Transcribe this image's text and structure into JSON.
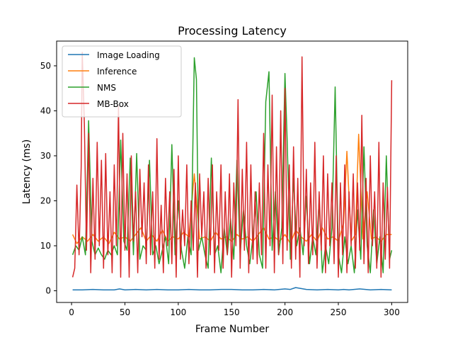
{
  "chart_data": {
    "type": "line",
    "title": "Processing Latency",
    "xlabel": "Frame Number",
    "ylabel": "Latency (ms)",
    "xlim": [
      -14,
      315
    ],
    "ylim": [
      -2.6,
      55.5
    ],
    "xticks": [
      0,
      50,
      100,
      150,
      200,
      250,
      300
    ],
    "yticks": [
      0,
      10,
      20,
      30,
      40,
      50
    ],
    "grid": false,
    "legend_position": "top-left",
    "series": [
      {
        "name": "Image Loading",
        "color": "#1f77b4",
        "x": [
          1,
          10,
          20,
          30,
          40,
          45,
          50,
          60,
          70,
          80,
          90,
          100,
          110,
          120,
          130,
          140,
          150,
          160,
          170,
          180,
          190,
          200,
          205,
          210,
          220,
          230,
          240,
          250,
          255,
          260,
          270,
          280,
          290,
          300
        ],
        "y": [
          0.2,
          0.2,
          0.3,
          0.2,
          0.2,
          0.4,
          0.2,
          0.3,
          0.2,
          0.3,
          0.2,
          0.2,
          0.3,
          0.2,
          0.2,
          0.3,
          0.3,
          0.2,
          0.2,
          0.3,
          0.2,
          0.4,
          0.3,
          0.7,
          0.3,
          0.2,
          0.3,
          0.2,
          0.3,
          0.2,
          0.4,
          0.2,
          0.3,
          0.2
        ]
      },
      {
        "name": "Inference",
        "color": "#ff7f0e",
        "x": [
          1,
          5,
          10,
          15,
          20,
          25,
          30,
          35,
          40,
          45,
          50,
          55,
          60,
          65,
          70,
          75,
          80,
          85,
          90,
          95,
          100,
          105,
          110,
          115,
          120,
          125,
          130,
          135,
          140,
          145,
          150,
          155,
          160,
          165,
          170,
          175,
          180,
          185,
          190,
          195,
          200,
          205,
          210,
          215,
          220,
          225,
          230,
          235,
          240,
          245,
          250,
          255,
          258,
          262,
          266,
          269,
          273,
          277,
          281,
          285,
          290,
          295,
          300
        ],
        "y": [
          12.5,
          10.5,
          12.0,
          11.0,
          12.5,
          11.0,
          12.0,
          10.5,
          13.0,
          11.5,
          12.0,
          11.0,
          12.5,
          14.0,
          11.0,
          12.5,
          11.0,
          13.5,
          11.0,
          12.0,
          11.5,
          13.0,
          12.0,
          26.0,
          11.5,
          12.0,
          11.0,
          13.0,
          11.5,
          12.0,
          11.0,
          12.5,
          11.5,
          12.0,
          11.0,
          12.5,
          14.0,
          11.5,
          12.0,
          11.0,
          12.5,
          10.5,
          13.5,
          12.0,
          11.0,
          12.5,
          11.0,
          14.0,
          11.5,
          12.0,
          11.0,
          15.0,
          31.0,
          11.0,
          12.5,
          34.8,
          11.5,
          22.0,
          11.5,
          12.0,
          11.0,
          12.5,
          12.5
        ]
      },
      {
        "name": "NMS",
        "color": "#2ca02c",
        "x": [
          1,
          4,
          7,
          10,
          13,
          16,
          19,
          22,
          25,
          28,
          31,
          34,
          37,
          40,
          43,
          46,
          49,
          52,
          55,
          58,
          61,
          64,
          67,
          70,
          73,
          76,
          79,
          82,
          85,
          88,
          91,
          94,
          97,
          100,
          103,
          106,
          109,
          112,
          115,
          117,
          119,
          122,
          125,
          128,
          131,
          134,
          137,
          140,
          143,
          146,
          149,
          152,
          155,
          158,
          161,
          164,
          167,
          170,
          173,
          176,
          179,
          182,
          185,
          188,
          191,
          194,
          197,
          200,
          202,
          205,
          208,
          211,
          214,
          217,
          220,
          223,
          226,
          229,
          232,
          235,
          238,
          241,
          244,
          247,
          250,
          253,
          256,
          259,
          262,
          265,
          268,
          271,
          274,
          277,
          280,
          283,
          286,
          289,
          292,
          295,
          298,
          300
        ],
        "y": [
          8.0,
          10.0,
          9.0,
          12.0,
          8.0,
          37.8,
          11.0,
          8.0,
          9.5,
          8.0,
          7.0,
          9.0,
          8.0,
          10.0,
          8.0,
          33.5,
          11.0,
          9.0,
          29.5,
          8.0,
          30.5,
          7.0,
          10.0,
          9.0,
          29.0,
          8.0,
          10.0,
          6.0,
          9.0,
          12.0,
          6.0,
          32.5,
          8.0,
          20.0,
          9.0,
          5.0,
          12.0,
          8.0,
          51.8,
          47.0,
          9.0,
          12.0,
          8.0,
          5.0,
          29.5,
          8.0,
          10.0,
          4.0,
          14.0,
          8.0,
          16.0,
          7.0,
          29.0,
          8.0,
          18.0,
          10.0,
          6.0,
          12.0,
          22.0,
          8.0,
          5.0,
          42.0,
          48.7,
          9.0,
          22.0,
          8.0,
          14.0,
          48.3,
          34.0,
          7.0,
          25.0,
          10.0,
          14.0,
          8.0,
          21.0,
          6.0,
          12.0,
          8.0,
          20.0,
          4.0,
          10.0,
          6.0,
          14.0,
          45.3,
          8.0,
          4.0,
          12.0,
          6.0,
          10.0,
          4.0,
          18.0,
          7.0,
          32.0,
          10.0,
          4.0,
          18.0,
          6.0,
          12.0,
          4.0,
          30.0,
          7.0,
          9.0
        ]
      },
      {
        "name": "MB-Box",
        "color": "#d62728",
        "x": [
          1,
          3,
          5,
          7,
          9,
          10,
          12,
          14,
          16,
          18,
          20,
          22,
          24,
          26,
          28,
          30,
          32,
          34,
          36,
          38,
          40,
          42,
          44,
          46,
          48,
          50,
          52,
          54,
          56,
          58,
          60,
          62,
          64,
          66,
          68,
          70,
          72,
          74,
          76,
          78,
          80,
          82,
          84,
          86,
          88,
          90,
          92,
          94,
          96,
          98,
          100,
          102,
          104,
          106,
          108,
          110,
          112,
          114,
          116,
          118,
          120,
          122,
          124,
          126,
          128,
          130,
          132,
          134,
          136,
          138,
          140,
          142,
          144,
          146,
          148,
          150,
          152,
          154,
          156,
          158,
          160,
          162,
          164,
          166,
          168,
          170,
          172,
          174,
          176,
          178,
          180,
          182,
          184,
          186,
          188,
          190,
          192,
          194,
          196,
          198,
          200,
          202,
          204,
          206,
          208,
          210,
          212,
          214,
          216,
          218,
          220,
          222,
          224,
          226,
          228,
          230,
          232,
          234,
          236,
          238,
          240,
          242,
          244,
          246,
          248,
          250,
          252,
          254,
          256,
          258,
          260,
          262,
          264,
          266,
          268,
          270,
          272,
          274,
          276,
          278,
          280,
          282,
          284,
          286,
          288,
          290,
          292,
          294,
          296,
          298,
          300
        ],
        "y": [
          3.0,
          5.0,
          23.5,
          8.0,
          27.5,
          53.0,
          37.0,
          9.0,
          35.0,
          4.0,
          25.0,
          7.0,
          33.0,
          10.0,
          29.0,
          5.0,
          30.5,
          8.0,
          22.0,
          4.0,
          28.0,
          10.0,
          41.0,
          3.0,
          35.0,
          9.0,
          26.0,
          3.0,
          30.0,
          11.0,
          22.0,
          4.0,
          27.0,
          12.0,
          24.0,
          6.0,
          28.0,
          8.0,
          22.0,
          5.0,
          33.8,
          7.0,
          19.0,
          4.0,
          25.0,
          10.0,
          22.0,
          6.0,
          27.0,
          3.0,
          30.0,
          7.0,
          18.0,
          10.0,
          28.0,
          6.0,
          20.0,
          9.0,
          24.0,
          3.0,
          26.0,
          12.0,
          22.0,
          5.0,
          25.0,
          8.0,
          28.0,
          4.0,
          22.0,
          9.0,
          28.0,
          5.0,
          22.0,
          8.0,
          26.0,
          3.0,
          24.0,
          10.0,
          42.5,
          5.0,
          27.0,
          9.0,
          33.0,
          4.0,
          28.0,
          7.0,
          22.0,
          6.0,
          24.0,
          8.0,
          35.0,
          5.0,
          28.0,
          10.0,
          43.5,
          4.0,
          32.0,
          8.0,
          40.0,
          6.0,
          45.0,
          9.0,
          28.0,
          5.0,
          32.0,
          7.0,
          25.0,
          3.0,
          52.0,
          10.0,
          27.0,
          6.0,
          24.0,
          8.0,
          33.0,
          5.0,
          22.0,
          9.0,
          30.0,
          4.0,
          26.0,
          10.0,
          24.0,
          6.0,
          30.0,
          3.0,
          24.0,
          8.0,
          28.0,
          4.0,
          22.0,
          10.0,
          26.0,
          5.0,
          24.0,
          9.0,
          39.0,
          6.0,
          25.0,
          4.0,
          30.0,
          10.0,
          22.0,
          5.0,
          33.0,
          3.0,
          24.0,
          7.0,
          23.0,
          5.0,
          46.8
        ]
      }
    ]
  }
}
